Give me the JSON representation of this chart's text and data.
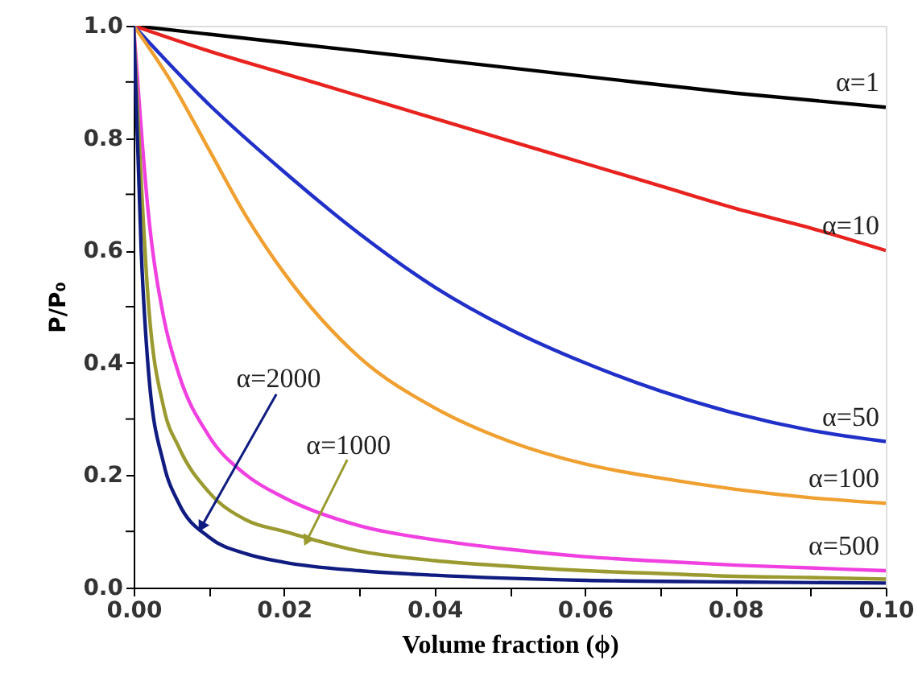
{
  "chart_data": {
    "type": "line",
    "xlabel": "Volume fraction (ϕ)",
    "ylabel": "P/P₀",
    "xlim": [
      0,
      0.1
    ],
    "ylim": [
      0,
      1.0
    ],
    "xticks": [
      {
        "value": 0,
        "label": "0.00"
      },
      {
        "value": 0.01,
        "label": null
      },
      {
        "value": 0.02,
        "label": "0.02"
      },
      {
        "value": 0.03,
        "label": null
      },
      {
        "value": 0.04,
        "label": "0.04"
      },
      {
        "value": 0.05,
        "label": null
      },
      {
        "value": 0.06,
        "label": "0.06"
      },
      {
        "value": 0.07,
        "label": null
      },
      {
        "value": 0.08,
        "label": "0.08"
      },
      {
        "value": 0.09,
        "label": null
      },
      {
        "value": 0.1,
        "label": "0.10"
      }
    ],
    "yticks": [
      {
        "value": 0,
        "label": "0.0"
      },
      {
        "value": 0.1,
        "label": null
      },
      {
        "value": 0.2,
        "label": "0.2"
      },
      {
        "value": 0.3,
        "label": null
      },
      {
        "value": 0.4,
        "label": "0.4"
      },
      {
        "value": 0.5,
        "label": null
      },
      {
        "value": 0.6,
        "label": "0.6"
      },
      {
        "value": 0.7,
        "label": null
      },
      {
        "value": 0.8,
        "label": "0.8"
      },
      {
        "value": 0.9,
        "label": null
      },
      {
        "value": 1.0,
        "label": "1.0"
      }
    ],
    "grid": false,
    "legend": false,
    "marker": "none",
    "line_style": "solid",
    "series": [
      {
        "name": "α=1",
        "color": "#000000",
        "x": [
          0,
          0.02,
          0.04,
          0.06,
          0.08,
          0.1
        ],
        "values": [
          1,
          0.97,
          0.94,
          0.91,
          0.88,
          0.855
        ]
      },
      {
        "name": "α=10",
        "color": "#e8231f",
        "x": [
          0,
          0.01,
          0.02,
          0.03,
          0.04,
          0.05,
          0.06,
          0.07,
          0.08,
          0.09,
          0.1
        ],
        "values": [
          1,
          0.955,
          0.915,
          0.875,
          0.835,
          0.795,
          0.755,
          0.715,
          0.675,
          0.64,
          0.6
        ]
      },
      {
        "name": "α=50",
        "color": "#2030c8",
        "x": [
          0,
          0.01,
          0.02,
          0.03,
          0.04,
          0.05,
          0.06,
          0.07,
          0.08,
          0.09,
          0.1
        ],
        "values": [
          1,
          0.86,
          0.74,
          0.63,
          0.535,
          0.46,
          0.4,
          0.35,
          0.31,
          0.28,
          0.26
        ]
      },
      {
        "name": "α=100",
        "color": "#f0a030",
        "x": [
          0,
          0.005,
          0.01,
          0.015,
          0.02,
          0.03,
          0.04,
          0.05,
          0.06,
          0.07,
          0.08,
          0.09,
          0.1
        ],
        "values": [
          1,
          0.9,
          0.78,
          0.66,
          0.56,
          0.41,
          0.32,
          0.26,
          0.22,
          0.195,
          0.175,
          0.16,
          0.15
        ]
      },
      {
        "name": "α=500",
        "color": "#f040e0",
        "x": [
          0,
          0.002,
          0.004,
          0.006,
          0.01,
          0.015,
          0.02,
          0.03,
          0.04,
          0.05,
          0.06,
          0.07,
          0.08,
          0.09,
          0.1
        ],
        "values": [
          1,
          0.66,
          0.48,
          0.38,
          0.27,
          0.2,
          0.16,
          0.11,
          0.085,
          0.068,
          0.055,
          0.047,
          0.04,
          0.035,
          0.03
        ]
      },
      {
        "color": "#9a9a30",
        "x": [
          0,
          0.002,
          0.004,
          0.006,
          0.01,
          0.015,
          0.02,
          0.03,
          0.04,
          0.05,
          0.06,
          0.07,
          0.08,
          0.09,
          0.1
        ],
        "values": [
          1,
          0.5,
          0.32,
          0.25,
          0.17,
          0.12,
          0.1,
          0.065,
          0.048,
          0.038,
          0.03,
          0.025,
          0.02,
          0.018,
          0.015
        ]
      },
      {
        "color": "#101c80",
        "x": [
          0,
          0.001,
          0.002,
          0.004,
          0.006,
          0.01,
          0.015,
          0.02,
          0.03,
          0.04,
          0.06,
          0.08,
          0.1
        ],
        "values": [
          1,
          0.6,
          0.38,
          0.22,
          0.15,
          0.09,
          0.06,
          0.045,
          0.03,
          0.022,
          0.013,
          0.01,
          0.008
        ]
      }
    ],
    "annotations": [
      {
        "text": "α=2000",
        "x": 0.009,
        "y": 0.108
      },
      {
        "text": "α=1000",
        "x": 0.023,
        "y": 0.083
      }
    ]
  }
}
